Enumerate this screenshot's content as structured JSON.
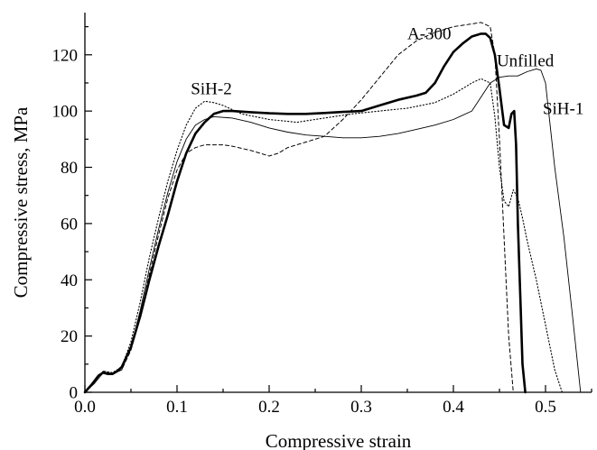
{
  "chart_data": {
    "type": "line",
    "xlabel": "Compressive strain",
    "ylabel": "Compressive stress, MPa",
    "xlim": [
      0.0,
      0.55
    ],
    "ylim": [
      0,
      135
    ],
    "xticks": [
      0.0,
      0.1,
      0.2,
      0.3,
      0.4,
      0.5
    ],
    "xtick_labels": [
      "0.0",
      "0.1",
      "0.2",
      "0.3",
      "0.4",
      "0.5"
    ],
    "yticks": [
      0,
      20,
      40,
      60,
      80,
      100,
      120
    ],
    "ytick_labels": [
      "0",
      "20",
      "40",
      "60",
      "80",
      "100",
      "120"
    ],
    "grid": false,
    "series": [
      {
        "name": "Unfilled",
        "style": "solid-thick",
        "color": "#000000",
        "x": [
          0,
          0.008,
          0.015,
          0.02,
          0.025,
          0.03,
          0.035,
          0.04,
          0.05,
          0.06,
          0.07,
          0.08,
          0.09,
          0.1,
          0.11,
          0.12,
          0.13,
          0.14,
          0.15,
          0.16,
          0.18,
          0.2,
          0.22,
          0.24,
          0.26,
          0.28,
          0.3,
          0.32,
          0.34,
          0.36,
          0.37,
          0.38,
          0.39,
          0.4,
          0.41,
          0.42,
          0.43,
          0.435,
          0.44,
          0.445,
          0.45,
          0.455,
          0.46,
          0.463,
          0.466,
          0.468,
          0.47,
          0.473,
          0.475,
          0.478
        ],
        "y": [
          0,
          3,
          6,
          7,
          6.5,
          6.5,
          7.5,
          9,
          16,
          27,
          40,
          52,
          63,
          75,
          85,
          92,
          96,
          99,
          100,
          100,
          99.6,
          99.2,
          99,
          99,
          99.3,
          99.7,
          100,
          102,
          104,
          105.5,
          106.5,
          110,
          116,
          121,
          124,
          126.5,
          127.5,
          127.5,
          126,
          120,
          108,
          95,
          94,
          99,
          100,
          88,
          60,
          30,
          10,
          0
        ]
      },
      {
        "name": "A-300",
        "style": "dashed",
        "color": "#000000",
        "x": [
          0,
          0.01,
          0.02,
          0.03,
          0.04,
          0.05,
          0.06,
          0.07,
          0.08,
          0.09,
          0.1,
          0.11,
          0.12,
          0.13,
          0.14,
          0.15,
          0.16,
          0.18,
          0.2,
          0.21,
          0.22,
          0.24,
          0.26,
          0.28,
          0.3,
          0.32,
          0.34,
          0.36,
          0.38,
          0.4,
          0.42,
          0.43,
          0.44,
          0.445,
          0.45,
          0.455,
          0.46,
          0.465
        ],
        "y": [
          0,
          4,
          7.5,
          6.5,
          8,
          15,
          27,
          42,
          56,
          69,
          79,
          85,
          87,
          88,
          88,
          88,
          87.5,
          86,
          84,
          85,
          87,
          89,
          91,
          97,
          104,
          112,
          120,
          125,
          128,
          130,
          131,
          131.5,
          130,
          120,
          90,
          55,
          20,
          0
        ]
      },
      {
        "name": "SiH-2",
        "style": "dotted",
        "color": "#000000",
        "x": [
          0,
          0.01,
          0.02,
          0.03,
          0.04,
          0.05,
          0.06,
          0.07,
          0.08,
          0.09,
          0.1,
          0.11,
          0.12,
          0.13,
          0.14,
          0.15,
          0.17,
          0.2,
          0.23,
          0.26,
          0.29,
          0.32,
          0.35,
          0.38,
          0.4,
          0.42,
          0.43,
          0.44,
          0.445,
          0.45,
          0.455,
          0.46,
          0.465,
          0.47,
          0.475,
          0.48,
          0.49,
          0.5,
          0.51,
          0.518
        ],
        "y": [
          0,
          4,
          7.5,
          7,
          9,
          18,
          32,
          48,
          62,
          75,
          86,
          95,
          101,
          103.5,
          103,
          102,
          99,
          97,
          96,
          97.5,
          99,
          100,
          101,
          103,
          106,
          110,
          111.5,
          110,
          98,
          80,
          68,
          66,
          72,
          69,
          62,
          54,
          40,
          24,
          8,
          0
        ]
      },
      {
        "name": "SiH-1",
        "style": "solid-thin",
        "color": "#000000",
        "x": [
          0,
          0.01,
          0.02,
          0.03,
          0.04,
          0.05,
          0.06,
          0.07,
          0.08,
          0.09,
          0.1,
          0.11,
          0.12,
          0.13,
          0.14,
          0.16,
          0.18,
          0.2,
          0.22,
          0.24,
          0.26,
          0.28,
          0.3,
          0.32,
          0.34,
          0.36,
          0.38,
          0.4,
          0.42,
          0.43,
          0.44,
          0.45,
          0.46,
          0.47,
          0.48,
          0.49,
          0.495,
          0.5,
          0.505,
          0.51,
          0.52,
          0.53,
          0.538
        ],
        "y": [
          0,
          3,
          7,
          6.5,
          8,
          16,
          29,
          44,
          58,
          71,
          82,
          90,
          95,
          97,
          98,
          97.5,
          96,
          94,
          92.5,
          91.5,
          91,
          90.5,
          90.5,
          91,
          92,
          93.5,
          95,
          97,
          100,
          105,
          110,
          112,
          112.5,
          112.5,
          114,
          115,
          114.5,
          110,
          95,
          80,
          55,
          25,
          0
        ]
      }
    ],
    "annotations": [
      {
        "text": "A-300",
        "x": 0.35,
        "y": 125.5
      },
      {
        "text": "SiH-2",
        "x": 0.115,
        "y": 106
      },
      {
        "text": "Unfilled",
        "x": 0.447,
        "y": 116
      },
      {
        "text": "SiH-1",
        "x": 0.497,
        "y": 99
      }
    ]
  }
}
